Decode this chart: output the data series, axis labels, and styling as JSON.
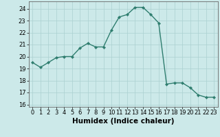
{
  "x": [
    0,
    1,
    2,
    3,
    4,
    5,
    6,
    7,
    8,
    9,
    10,
    11,
    12,
    13,
    14,
    15,
    16,
    17,
    18,
    19,
    20,
    21,
    22,
    23
  ],
  "y": [
    19.5,
    19.1,
    19.5,
    19.9,
    20.0,
    20.0,
    20.7,
    21.1,
    20.8,
    20.8,
    22.2,
    23.3,
    23.5,
    24.1,
    24.1,
    23.5,
    22.8,
    17.7,
    17.8,
    17.8,
    17.4,
    16.8,
    16.6,
    16.6
  ],
  "line_color": "#2e7d6e",
  "marker": "D",
  "marker_size": 2.2,
  "line_width": 1.0,
  "xlabel": "Humidex (Indice chaleur)",
  "xlim": [
    -0.5,
    23.5
  ],
  "ylim": [
    15.8,
    24.6
  ],
  "yticks": [
    16,
    17,
    18,
    19,
    20,
    21,
    22,
    23,
    24
  ],
  "xticks": [
    0,
    1,
    2,
    3,
    4,
    5,
    6,
    7,
    8,
    9,
    10,
    11,
    12,
    13,
    14,
    15,
    16,
    17,
    18,
    19,
    20,
    21,
    22,
    23
  ],
  "bg_color": "#cce9e9",
  "grid_color": "#aad0d0",
  "tick_fontsize": 6,
  "xlabel_fontsize": 7.5
}
